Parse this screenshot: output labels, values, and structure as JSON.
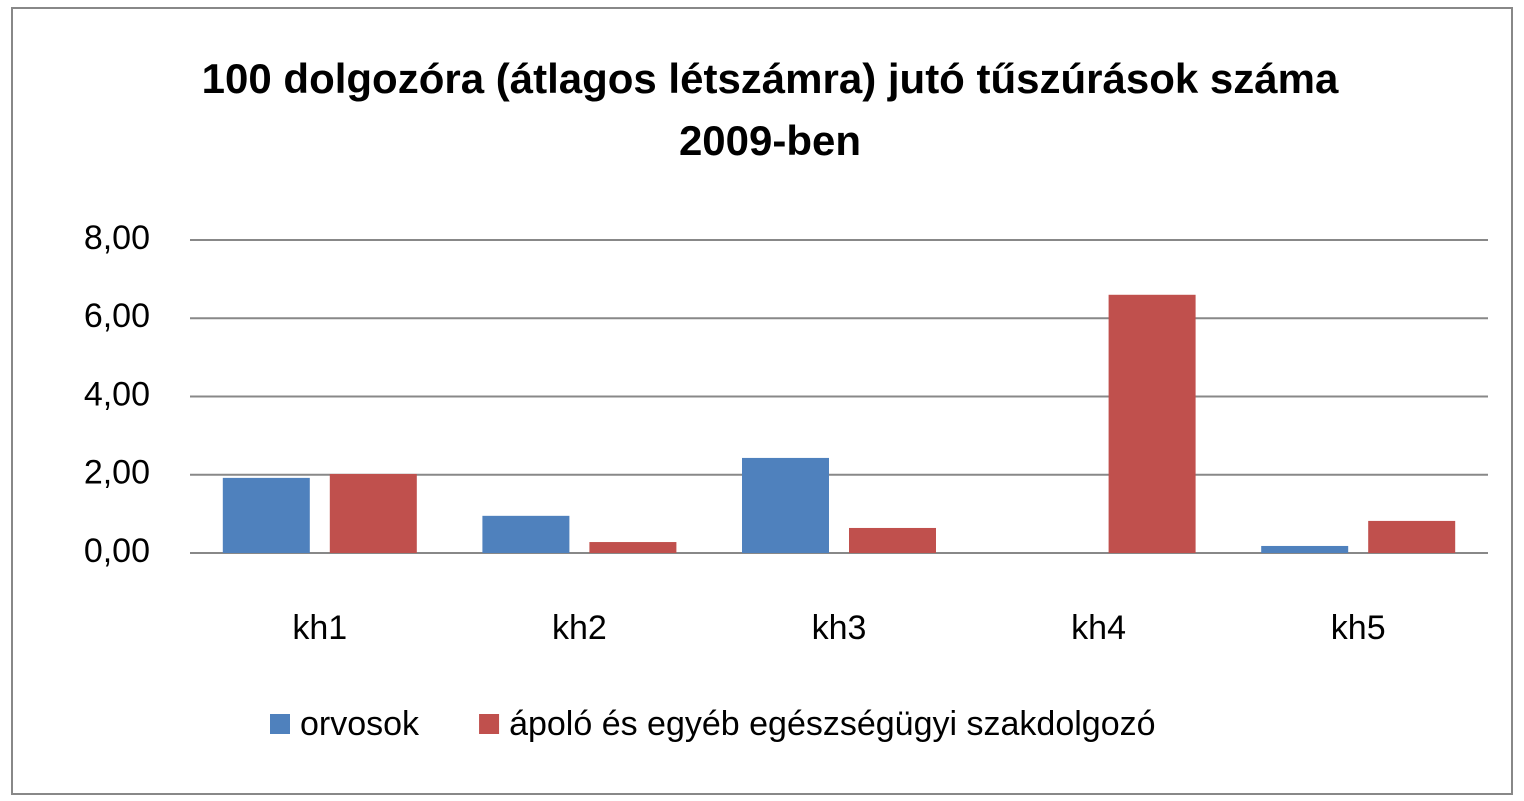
{
  "chart_data": {
    "type": "bar",
    "title": "100 dolgozóra (átlagos létszámra) jutó tűszúrások száma 2009-ben",
    "categories": [
      "kh1",
      "kh2",
      "kh3",
      "kh4",
      "kh5"
    ],
    "series": [
      {
        "name": "orvosok",
        "color": "#4f81bd",
        "values": [
          1.92,
          0.95,
          2.43,
          0,
          0.18
        ]
      },
      {
        "name": "ápoló és egyéb egészségügyi szakdolgozó",
        "color": "#c0504d",
        "values": [
          2.02,
          0.28,
          0.64,
          6.6,
          0.82
        ]
      }
    ],
    "ylim": [
      0,
      8
    ],
    "yticks": [
      {
        "value": 0,
        "label": "0,00"
      },
      {
        "value": 2,
        "label": "2,00"
      },
      {
        "value": 4,
        "label": "4,00"
      },
      {
        "value": 6,
        "label": "6,00"
      },
      {
        "value": 8,
        "label": "8,00"
      }
    ],
    "grid": true,
    "legend": "bottom"
  }
}
